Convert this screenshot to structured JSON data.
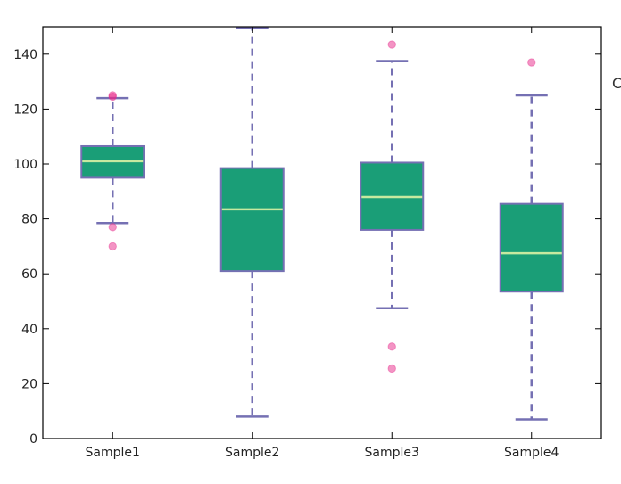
{
  "chart_data": {
    "type": "box",
    "title": "",
    "xlabel": "",
    "ylabel": "",
    "ylim": [
      0,
      150
    ],
    "yticks": [
      0,
      20,
      40,
      60,
      80,
      100,
      120,
      140
    ],
    "grid": false,
    "categories": [
      "Sample1",
      "Sample2",
      "Sample3",
      "Sample4"
    ],
    "boxes": [
      {
        "name": "Sample1",
        "whisker_low": 78.5,
        "q1": 95,
        "median": 101,
        "q3": 106.5,
        "whisker_high": 124,
        "outliers": [
          77,
          70,
          124.5,
          125
        ]
      },
      {
        "name": "Sample2",
        "whisker_low": 8,
        "q1": 61,
        "median": 83.5,
        "q3": 98.5,
        "whisker_high": 149.5,
        "outliers": []
      },
      {
        "name": "Sample3",
        "whisker_low": 47.5,
        "q1": 76,
        "median": 88,
        "q3": 100.5,
        "whisker_high": 137.5,
        "outliers": [
          143.5,
          33.5,
          25.5
        ]
      },
      {
        "name": "Sample4",
        "whisker_low": 7,
        "q1": 53.5,
        "median": 67.5,
        "q3": 85.5,
        "whisker_high": 125,
        "outliers": [
          137
        ]
      }
    ],
    "colors": {
      "box_fill": "#1a9e77",
      "box_edge": "#7570b3",
      "median": "#c7e9a0",
      "whisker": "#7570b3",
      "outlier": "#e7298a",
      "axis": "#000000"
    }
  },
  "edge_text": "C"
}
